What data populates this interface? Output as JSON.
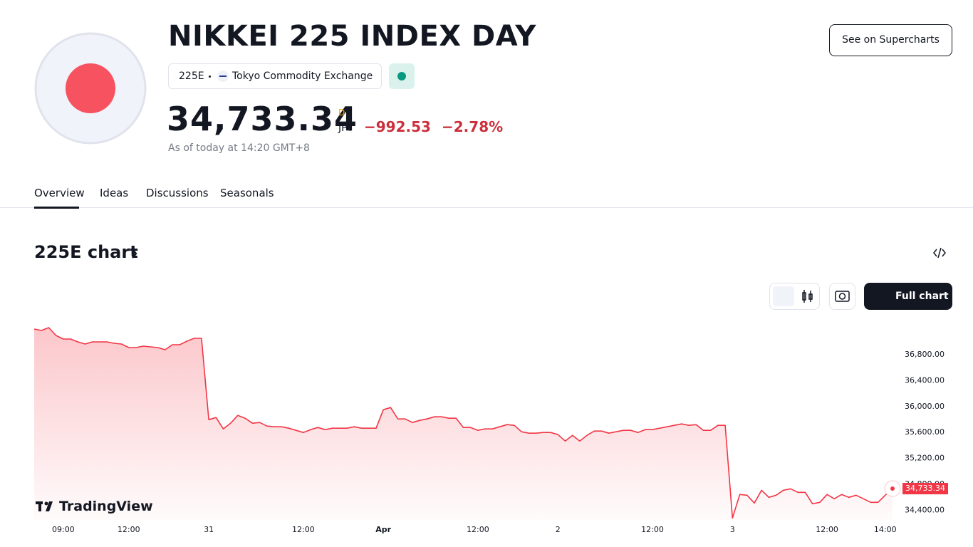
{
  "header": {
    "title": "NIKKEI 225 INDEX DAY",
    "symbol": "225E",
    "exchange": "Tokyo Commodity Exchange",
    "price": "34,733.34",
    "price_suffix": "D",
    "currency": "JPY",
    "change": "−992.53",
    "change_percent": "−2.78%",
    "as_of": "As of today at 14:20 GMT+8",
    "button": "See on Supercharts"
  },
  "tabs": [
    "Overview",
    "Ideas",
    "Discussions",
    "Seasonals"
  ],
  "section": {
    "title": "225E chart",
    "full_chart": "Full chart",
    "brand": "TradingView"
  },
  "chart_data": {
    "type": "line",
    "color": "#f23645",
    "ylim": [
      34250,
      37350
    ],
    "yticks": [
      {
        "value": 34400,
        "label": "34,400.00"
      },
      {
        "value": 34800,
        "label": "34,800.00"
      },
      {
        "value": 35200,
        "label": "35,200.00"
      },
      {
        "value": 35600,
        "label": "35,600.00"
      },
      {
        "value": 36000,
        "label": "36,000.00"
      },
      {
        "value": 36400,
        "label": "36,400.00"
      },
      {
        "value": 36800,
        "label": "36,800.00"
      }
    ],
    "categories": [
      null,
      null,
      null,
      null,
      "09:00",
      null,
      null,
      null,
      null,
      null,
      null,
      null,
      null,
      "12:00",
      null,
      null,
      null,
      null,
      null,
      null,
      null,
      null,
      null,
      null,
      "31",
      null,
      null,
      null,
      null,
      null,
      null,
      null,
      null,
      null,
      null,
      null,
      null,
      "12:00",
      null,
      null,
      null,
      null,
      null,
      null,
      null,
      null,
      null,
      null,
      "Apr",
      null,
      null,
      null,
      null,
      null,
      null,
      null,
      null,
      null,
      null,
      null,
      null,
      "12:00",
      null,
      null,
      null,
      null,
      null,
      null,
      null,
      null,
      null,
      null,
      "2",
      null,
      null,
      null,
      null,
      null,
      null,
      null,
      null,
      null,
      null,
      null,
      null,
      "12:00",
      null,
      null,
      null,
      null,
      null,
      null,
      null,
      null,
      null,
      null,
      "3",
      null,
      null,
      null,
      null,
      null,
      null,
      null,
      null,
      null,
      null,
      null,
      null,
      "12:00",
      null,
      null,
      null,
      null,
      null,
      null,
      null,
      "14:00",
      null
    ],
    "values": [
      37196,
      37174,
      37218,
      37097,
      37042,
      37042,
      36998,
      36965,
      36998,
      36998,
      36998,
      36976,
      36965,
      36910,
      36910,
      36932,
      36921,
      36910,
      36877,
      36954,
      36954,
      37009,
      37053,
      37053,
      35798,
      35831,
      35655,
      35743,
      35864,
      35820,
      35743,
      35754,
      35699,
      35688,
      35688,
      35666,
      35633,
      35600,
      35644,
      35677,
      35644,
      35666,
      35666,
      35666,
      35688,
      35666,
      35666,
      35666,
      35952,
      35985,
      35809,
      35809,
      35754,
      35787,
      35809,
      35842,
      35842,
      35820,
      35820,
      35677,
      35677,
      35633,
      35655,
      35655,
      35688,
      35721,
      35710,
      35611,
      35589,
      35589,
      35600,
      35600,
      35567,
      35468,
      35556,
      35468,
      35556,
      35622,
      35622,
      35589,
      35611,
      35633,
      35633,
      35600,
      35644,
      35644,
      35666,
      35688,
      35710,
      35732,
      35710,
      35721,
      35633,
      35633,
      35710,
      35710,
      34279,
      34642,
      34631,
      34510,
      34708,
      34598,
      34631,
      34708,
      34730,
      34675,
      34675,
      34499,
      34521,
      34642,
      34576,
      34642,
      34598,
      34631,
      34576,
      34521,
      34521,
      34631,
      34733.34
    ]
  }
}
